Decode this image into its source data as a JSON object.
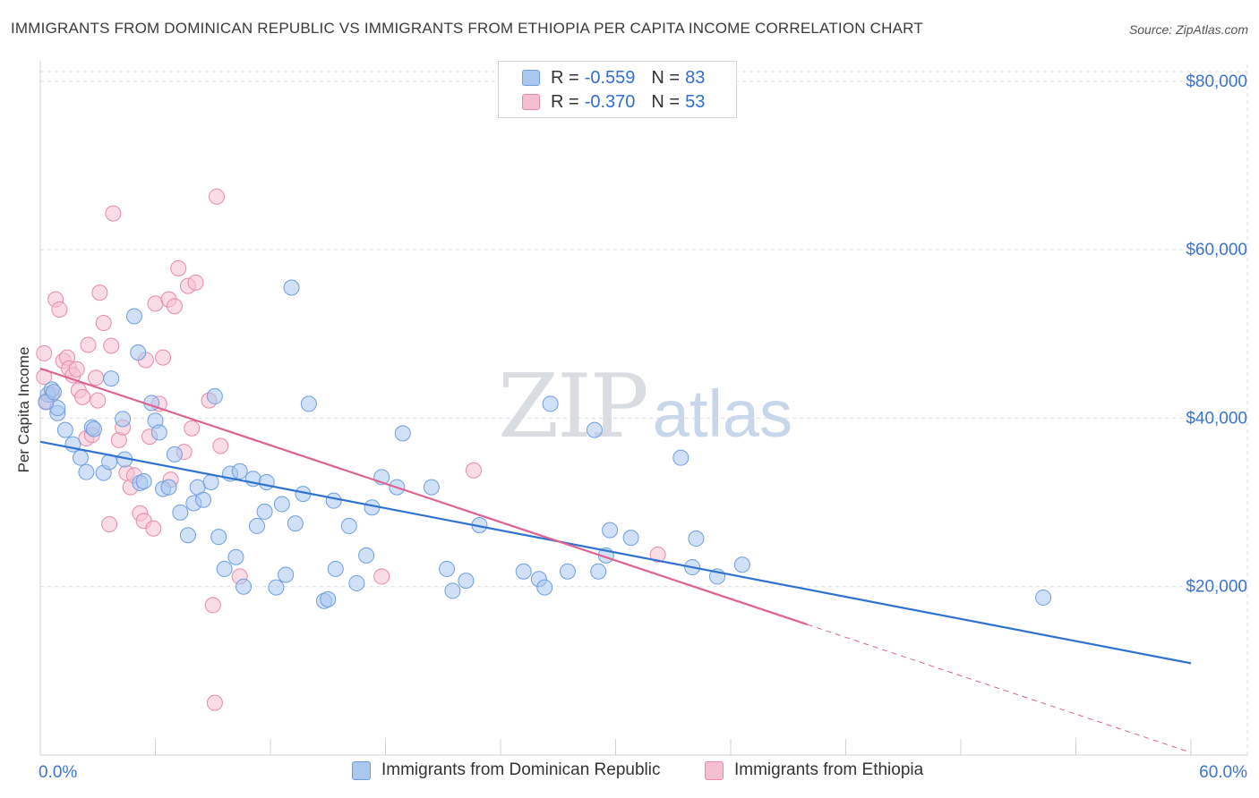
{
  "header": {
    "title": "IMMIGRANTS FROM DOMINICAN REPUBLIC VS IMMIGRANTS FROM ETHIOPIA PER CAPITA INCOME CORRELATION CHART",
    "source": "Source: ZipAtlas.com"
  },
  "watermark": {
    "zip": "ZIP",
    "atlas": "atlas"
  },
  "legend": {
    "rows": [
      {
        "r_label": "R =",
        "r_value": "-0.559",
        "n_label": "N =",
        "n_value": "83"
      },
      {
        "r_label": "R =",
        "r_value": "-0.370",
        "n_label": "N =",
        "n_value": "53"
      }
    ]
  },
  "bottom_legend": {
    "series1": "Immigrants from Dominican Republic",
    "series2": "Immigrants from Ethiopia"
  },
  "colors": {
    "blue_fill": "#aac7ee",
    "blue_stroke": "#6d9ee0",
    "blue_line": "#2f72d0",
    "pink_fill": "#f5bfd1",
    "pink_stroke": "#e889ab",
    "pink_line": "#e0608f",
    "axis_text": "#3b74cf",
    "grid": "#d9dde3"
  },
  "chart_data": {
    "type": "scatter",
    "title": "IMMIGRANTS FROM DOMINICAN REPUBLIC VS IMMIGRANTS FROM ETHIOPIA PER CAPITA INCOME CORRELATION CHART",
    "xlabel": "",
    "ylabel": "Per Capita Income",
    "xlim": [
      0,
      60
    ],
    "ylim": [
      0,
      82000
    ],
    "x_tick_labels": [
      "0.0%",
      "60.0%"
    ],
    "y_ticks": [
      20000,
      40000,
      60000,
      80000
    ],
    "y_tick_labels": [
      "$20,000",
      "$40,000",
      "$60,000",
      "$80,000"
    ],
    "grid": true,
    "series": [
      {
        "name": "Immigrants from Dominican Republic",
        "color": "#aac7ee",
        "r": -0.559,
        "n": 83,
        "trend": {
          "x": [
            0,
            60
          ],
          "y": [
            37200,
            10900
          ]
        },
        "points": [
          [
            0.4,
            42800
          ],
          [
            0.6,
            43400
          ],
          [
            0.9,
            40600
          ],
          [
            0.9,
            41200
          ],
          [
            1.3,
            38600
          ],
          [
            1.7,
            36900
          ],
          [
            2.1,
            35300
          ],
          [
            2.4,
            33600
          ],
          [
            2.7,
            38900
          ],
          [
            2.8,
            38700
          ],
          [
            3.3,
            33500
          ],
          [
            3.6,
            34800
          ],
          [
            3.7,
            44700
          ],
          [
            4.3,
            39900
          ],
          [
            4.4,
            35100
          ],
          [
            4.9,
            52100
          ],
          [
            5.1,
            47800
          ],
          [
            5.2,
            32300
          ],
          [
            5.4,
            32500
          ],
          [
            5.8,
            41800
          ],
          [
            6.0,
            39700
          ],
          [
            6.2,
            38300
          ],
          [
            6.4,
            31600
          ],
          [
            6.7,
            31800
          ],
          [
            7.0,
            35700
          ],
          [
            7.3,
            28800
          ],
          [
            7.7,
            26100
          ],
          [
            8.0,
            29900
          ],
          [
            8.2,
            31800
          ],
          [
            8.5,
            30300
          ],
          [
            8.9,
            32400
          ],
          [
            9.1,
            42600
          ],
          [
            9.3,
            25900
          ],
          [
            9.6,
            22100
          ],
          [
            9.9,
            33400
          ],
          [
            10.2,
            23500
          ],
          [
            10.4,
            33700
          ],
          [
            10.6,
            20000
          ],
          [
            11.1,
            32800
          ],
          [
            11.3,
            27200
          ],
          [
            11.7,
            28900
          ],
          [
            11.8,
            32400
          ],
          [
            12.3,
            19900
          ],
          [
            12.6,
            29800
          ],
          [
            12.8,
            21400
          ],
          [
            13.1,
            55500
          ],
          [
            13.3,
            27500
          ],
          [
            13.7,
            31000
          ],
          [
            14.0,
            41700
          ],
          [
            14.8,
            18300
          ],
          [
            15.0,
            18500
          ],
          [
            15.3,
            30200
          ],
          [
            15.4,
            22100
          ],
          [
            16.1,
            27200
          ],
          [
            16.5,
            20400
          ],
          [
            17.0,
            23700
          ],
          [
            17.3,
            29400
          ],
          [
            17.8,
            33000
          ],
          [
            18.6,
            31800
          ],
          [
            18.9,
            38200
          ],
          [
            20.4,
            31800
          ],
          [
            21.2,
            22100
          ],
          [
            21.5,
            19500
          ],
          [
            22.2,
            20700
          ],
          [
            22.9,
            27300
          ],
          [
            25.2,
            21800
          ],
          [
            26.0,
            20900
          ],
          [
            26.3,
            19900
          ],
          [
            26.6,
            41700
          ],
          [
            27.5,
            21800
          ],
          [
            28.9,
            38600
          ],
          [
            29.1,
            21800
          ],
          [
            29.5,
            23700
          ],
          [
            29.7,
            26700
          ],
          [
            30.8,
            25800
          ],
          [
            33.4,
            35300
          ],
          [
            34.0,
            22300
          ],
          [
            34.2,
            25700
          ],
          [
            35.3,
            21200
          ],
          [
            36.6,
            22600
          ],
          [
            52.3,
            18700
          ],
          [
            0.3,
            41900
          ],
          [
            0.7,
            43100
          ]
        ]
      },
      {
        "name": "Immigrants from Ethiopia",
        "color": "#f5bfd1",
        "r": -0.37,
        "n": 53,
        "trend": {
          "x": [
            0,
            40
          ],
          "y": [
            45900,
            15500
          ]
        },
        "trend_extension": {
          "x": [
            40,
            60
          ],
          "y": [
            15500,
            300
          ]
        },
        "points": [
          [
            0.2,
            47700
          ],
          [
            0.2,
            44900
          ],
          [
            0.3,
            42000
          ],
          [
            0.6,
            42800
          ],
          [
            0.8,
            54100
          ],
          [
            1.0,
            52900
          ],
          [
            1.2,
            46800
          ],
          [
            1.4,
            47200
          ],
          [
            1.5,
            45900
          ],
          [
            1.7,
            45100
          ],
          [
            1.9,
            45800
          ],
          [
            2.0,
            43300
          ],
          [
            2.2,
            42500
          ],
          [
            2.4,
            37600
          ],
          [
            2.5,
            48700
          ],
          [
            2.7,
            38000
          ],
          [
            2.9,
            44800
          ],
          [
            3.0,
            42100
          ],
          [
            3.1,
            54900
          ],
          [
            3.3,
            51300
          ],
          [
            3.6,
            27400
          ],
          [
            3.7,
            48600
          ],
          [
            3.8,
            64300
          ],
          [
            4.1,
            37400
          ],
          [
            4.3,
            38900
          ],
          [
            4.5,
            33500
          ],
          [
            4.7,
            31800
          ],
          [
            4.9,
            33200
          ],
          [
            5.2,
            28700
          ],
          [
            5.4,
            27800
          ],
          [
            5.5,
            46900
          ],
          [
            5.7,
            37800
          ],
          [
            5.9,
            26900
          ],
          [
            6.0,
            53600
          ],
          [
            6.2,
            41700
          ],
          [
            6.4,
            47200
          ],
          [
            6.7,
            54100
          ],
          [
            6.8,
            32700
          ],
          [
            7.0,
            53300
          ],
          [
            7.2,
            57800
          ],
          [
            7.5,
            36000
          ],
          [
            7.7,
            55700
          ],
          [
            7.9,
            38800
          ],
          [
            8.1,
            56100
          ],
          [
            8.8,
            42100
          ],
          [
            9.0,
            17800
          ],
          [
            9.1,
            6200
          ],
          [
            9.2,
            66300
          ],
          [
            9.4,
            36700
          ],
          [
            10.4,
            21200
          ],
          [
            17.8,
            21200
          ],
          [
            22.6,
            33800
          ],
          [
            32.2,
            23800
          ]
        ]
      }
    ]
  }
}
